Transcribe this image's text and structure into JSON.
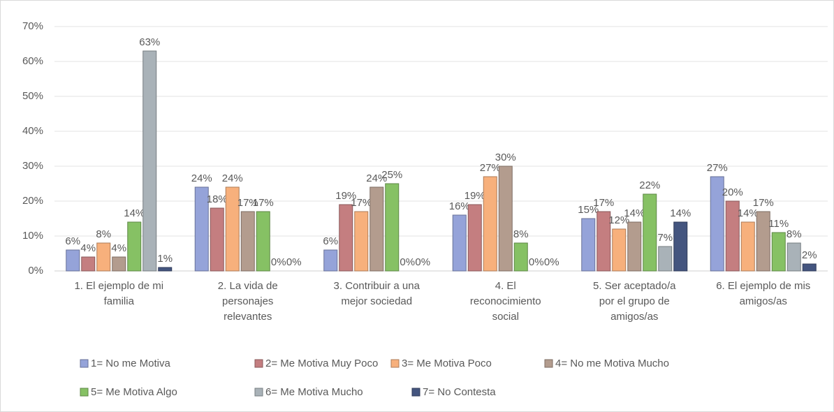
{
  "chart_data": {
    "type": "bar",
    "categories": [
      [
        "1. El ejemplo de mi",
        "familia"
      ],
      [
        "2. La  vida de",
        "personajes",
        "relevantes"
      ],
      [
        "3. Contribuir a  una",
        "mejor sociedad"
      ],
      [
        "4. El",
        "reconocimiento",
        "social"
      ],
      [
        "5. Ser aceptado/a",
        "por el grupo de",
        "amigos/as"
      ],
      [
        "6. El ejemplo de mis",
        "amigos/as"
      ]
    ],
    "series": [
      {
        "name": "1= No me Motiva",
        "color": "#95a3d9",
        "values": [
          6,
          24,
          6,
          16,
          15,
          27
        ],
        "value_labels": [
          "6%",
          "24%",
          "6%",
          "16%",
          "15%",
          "27%"
        ]
      },
      {
        "name": "2= Me Motiva Muy Poco",
        "color": "#c47e80",
        "values": [
          4,
          18,
          19,
          19,
          17,
          20
        ],
        "value_labels": [
          "4%",
          "18%",
          "19%",
          "19%",
          "17%",
          "20%"
        ]
      },
      {
        "name": "3= Me Motiva Poco",
        "color": "#f7b07c",
        "values": [
          8,
          24,
          17,
          27,
          12,
          14
        ],
        "value_labels": [
          "8%",
          "24%",
          "17%",
          "27%",
          "12%",
          "14%"
        ]
      },
      {
        "name": "4= No me Motiva Mucho",
        "color": "#b39c8e",
        "values": [
          4,
          17,
          24,
          30,
          14,
          17
        ],
        "value_labels": [
          "4%",
          "17%",
          "24%",
          "30%",
          "14%",
          "17%"
        ]
      },
      {
        "name": "5= Me Motiva Algo",
        "color": "#86c164",
        "values": [
          14,
          17,
          25,
          8,
          22,
          11
        ],
        "value_labels": [
          "14%",
          "17%",
          "25%",
          "8%",
          "22%",
          "11%"
        ]
      },
      {
        "name": "6= Me Motiva Mucho",
        "color": "#a9b2b8",
        "values": [
          63,
          0,
          0,
          0,
          7,
          8
        ],
        "value_labels": [
          "63%",
          "0%",
          "0%",
          "0%",
          "7%",
          "8%"
        ]
      },
      {
        "name": "7= No Contesta",
        "color": "#44557f",
        "values": [
          1,
          0,
          0,
          0,
          14,
          2
        ],
        "value_labels": [
          "1%",
          "0%",
          "0%",
          "0%",
          "14%",
          "2%"
        ]
      }
    ],
    "ylim": [
      0,
      70
    ],
    "yticks": [
      {
        "value": 0,
        "label": "0%"
      },
      {
        "value": 10,
        "label": "10%"
      },
      {
        "value": 20,
        "label": "20%"
      },
      {
        "value": 30,
        "label": "30%"
      },
      {
        "value": 40,
        "label": "40%"
      },
      {
        "value": 50,
        "label": "50%"
      },
      {
        "value": 60,
        "label": "60%"
      },
      {
        "value": 70,
        "label": "70%"
      }
    ],
    "grid": true,
    "legend": "bottom"
  }
}
